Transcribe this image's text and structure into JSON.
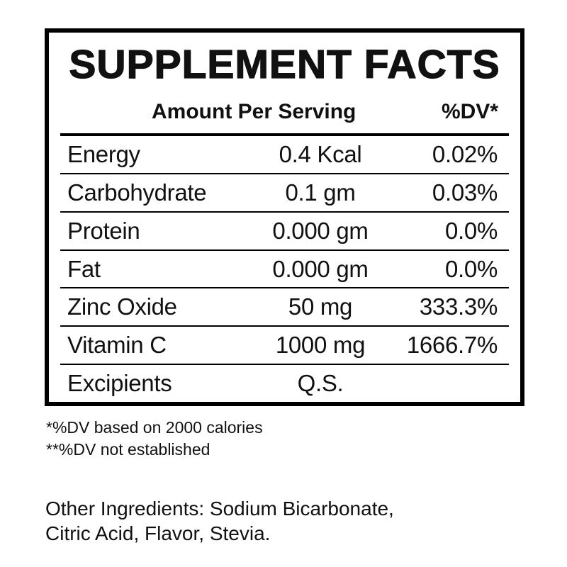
{
  "panel": {
    "title": "SUPPLEMENT FACTS",
    "columns": {
      "amount_header": "Amount Per Serving",
      "dv_header": "%DV*"
    },
    "rows": [
      {
        "name": "Energy",
        "amount": "0.4 Kcal",
        "dv": "0.02%"
      },
      {
        "name": "Carbohydrate",
        "amount": "0.1 gm",
        "dv": "0.03%"
      },
      {
        "name": "Protein",
        "amount": "0.000 gm",
        "dv": "0.0%"
      },
      {
        "name": "Fat",
        "amount": "0.000 gm",
        "dv": "0.0%"
      },
      {
        "name": "Zinc Oxide",
        "amount": "50 mg",
        "dv": "333.3%"
      },
      {
        "name": "Vitamin C",
        "amount": "1000 mg",
        "dv": "1666.7%"
      },
      {
        "name": "Excipients",
        "amount": "Q.S.",
        "dv": ""
      }
    ],
    "footnotes": [
      "*%DV based on 2000 calories",
      "**%DV not established"
    ],
    "other_ingredients_lines": [
      "Other Ingredients: Sodium Bicarbonate,",
      "Citric Acid, Flavor, Stevia."
    ]
  },
  "colors": {
    "text": "#111111",
    "border": "#000000",
    "background": "#ffffff"
  }
}
